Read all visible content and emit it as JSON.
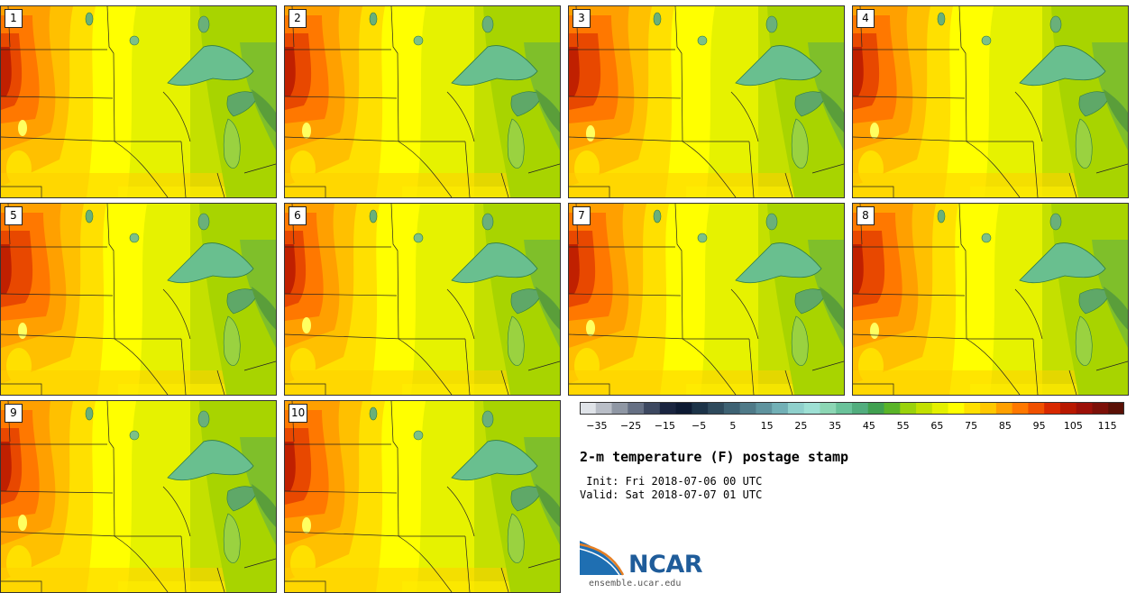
{
  "panels": [
    {
      "label": "1",
      "variant": 0
    },
    {
      "label": "2",
      "variant": 1
    },
    {
      "label": "3",
      "variant": 2
    },
    {
      "label": "4",
      "variant": 1
    },
    {
      "label": "5",
      "variant": 2
    },
    {
      "label": "6",
      "variant": 0
    },
    {
      "label": "7",
      "variant": 1
    },
    {
      "label": "8",
      "variant": 2
    },
    {
      "label": "9",
      "variant": 0
    },
    {
      "label": "10",
      "variant": 1
    }
  ],
  "colorbar": {
    "colors": [
      "#dfe3e8",
      "#b9bec7",
      "#8f97a4",
      "#667084",
      "#3d4860",
      "#1a2540",
      "#0d1a33",
      "#1c3348",
      "#2e4a5c",
      "#3e6273",
      "#4f7a88",
      "#5f939e",
      "#72b0b6",
      "#8fd0cc",
      "#9ee0d4",
      "#8cd6b4",
      "#6ac29a",
      "#52ad7e",
      "#40a050",
      "#5ab428",
      "#9ad20c",
      "#c2e000",
      "#e4f000",
      "#ffff00",
      "#ffe000",
      "#ffc800",
      "#ffa000",
      "#ff7800",
      "#f05000",
      "#d82800",
      "#b81800",
      "#9c1008",
      "#7c1008",
      "#5a1006"
    ],
    "tick_labels": [
      "−35",
      "−25",
      "−15",
      "−5",
      "5",
      "15",
      "25",
      "35",
      "45",
      "55",
      "65",
      "75",
      "85",
      "95",
      "105",
      "115"
    ],
    "min": -40,
    "max": 120
  },
  "title": "2-m temperature (F) postage stamp",
  "init": " Init: Fri 2018-07-06 00 UTC",
  "valid": "Valid: Sat 2018-07-07 01 UTC",
  "logo_text": "NCAR",
  "url": "ensemble.ucar.edu"
}
